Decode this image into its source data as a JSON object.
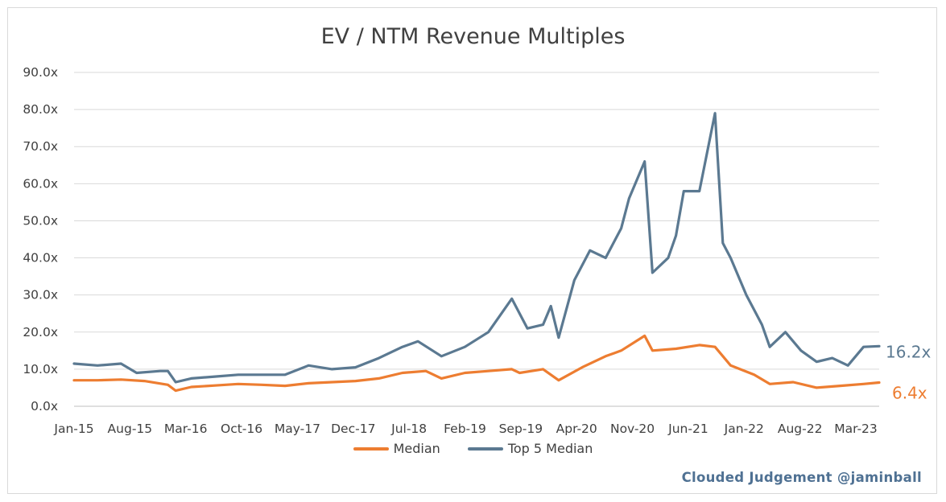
{
  "chart_data": {
    "type": "line",
    "title": "EV / NTM Revenue Multiples",
    "xlabel": "",
    "ylabel": "",
    "ylim": [
      0,
      90
    ],
    "y_ticks": [
      "0.0x",
      "10.0x",
      "20.0x",
      "30.0x",
      "40.0x",
      "50.0x",
      "60.0x",
      "70.0x",
      "80.0x",
      "90.0x"
    ],
    "x_ticks": [
      "Jan-15",
      "Aug-15",
      "Mar-16",
      "Oct-16",
      "May-17",
      "Dec-17",
      "Jul-18",
      "Feb-19",
      "Sep-19",
      "Apr-20",
      "Nov-20",
      "Jun-21",
      "Jan-22",
      "Aug-22",
      "Mar-23"
    ],
    "x_range": [
      "2015-01",
      "2023-08"
    ],
    "grid": true,
    "legend_position": "bottom",
    "series": [
      {
        "name": "Median",
        "color": "#ed7d31",
        "end_label": "6.4x",
        "points": [
          [
            "2015-01",
            7.0
          ],
          [
            "2015-04",
            7.0
          ],
          [
            "2015-07",
            7.2
          ],
          [
            "2015-10",
            6.8
          ],
          [
            "2016-01",
            5.8
          ],
          [
            "2016-02",
            4.2
          ],
          [
            "2016-04",
            5.2
          ],
          [
            "2016-07",
            5.6
          ],
          [
            "2016-10",
            6.0
          ],
          [
            "2017-01",
            5.8
          ],
          [
            "2017-04",
            5.5
          ],
          [
            "2017-07",
            6.2
          ],
          [
            "2017-10",
            6.5
          ],
          [
            "2018-01",
            6.8
          ],
          [
            "2018-04",
            7.5
          ],
          [
            "2018-07",
            9.0
          ],
          [
            "2018-10",
            9.5
          ],
          [
            "2018-12",
            7.5
          ],
          [
            "2019-03",
            9.0
          ],
          [
            "2019-06",
            9.5
          ],
          [
            "2019-09",
            10.0
          ],
          [
            "2019-10",
            9.0
          ],
          [
            "2020-01",
            10.0
          ],
          [
            "2020-03",
            7.0
          ],
          [
            "2020-06",
            10.5
          ],
          [
            "2020-09",
            13.5
          ],
          [
            "2020-11",
            15.0
          ],
          [
            "2021-02",
            19.0
          ],
          [
            "2021-03",
            15.0
          ],
          [
            "2021-06",
            15.5
          ],
          [
            "2021-09",
            16.5
          ],
          [
            "2021-11",
            16.0
          ],
          [
            "2022-01",
            11.0
          ],
          [
            "2022-04",
            8.5
          ],
          [
            "2022-06",
            6.0
          ],
          [
            "2022-09",
            6.5
          ],
          [
            "2022-12",
            5.0
          ],
          [
            "2023-03",
            5.5
          ],
          [
            "2023-06",
            6.0
          ],
          [
            "2023-08",
            6.4
          ]
        ]
      },
      {
        "name": "Top 5 Median",
        "color": "#5b7991",
        "end_label": "16.2x",
        "points": [
          [
            "2015-01",
            11.5
          ],
          [
            "2015-04",
            11.0
          ],
          [
            "2015-07",
            11.5
          ],
          [
            "2015-09",
            9.0
          ],
          [
            "2015-12",
            9.5
          ],
          [
            "2016-01",
            9.5
          ],
          [
            "2016-02",
            6.5
          ],
          [
            "2016-04",
            7.5
          ],
          [
            "2016-07",
            8.0
          ],
          [
            "2016-10",
            8.5
          ],
          [
            "2017-01",
            8.5
          ],
          [
            "2017-04",
            8.5
          ],
          [
            "2017-07",
            11.0
          ],
          [
            "2017-10",
            10.0
          ],
          [
            "2018-01",
            10.5
          ],
          [
            "2018-04",
            13.0
          ],
          [
            "2018-07",
            16.0
          ],
          [
            "2018-09",
            17.5
          ],
          [
            "2018-12",
            13.5
          ],
          [
            "2019-03",
            16.0
          ],
          [
            "2019-06",
            20.0
          ],
          [
            "2019-09",
            29.0
          ],
          [
            "2019-11",
            21.0
          ],
          [
            "2020-01",
            22.0
          ],
          [
            "2020-02",
            27.0
          ],
          [
            "2020-03",
            18.5
          ],
          [
            "2020-05",
            34.0
          ],
          [
            "2020-07",
            42.0
          ],
          [
            "2020-09",
            40.0
          ],
          [
            "2020-11",
            48.0
          ],
          [
            "2020-12",
            56.0
          ],
          [
            "2021-02",
            66.0
          ],
          [
            "2021-03",
            36.0
          ],
          [
            "2021-05",
            40.0
          ],
          [
            "2021-06",
            46.0
          ],
          [
            "2021-07",
            58.0
          ],
          [
            "2021-09",
            58.0
          ],
          [
            "2021-11",
            79.0
          ],
          [
            "2021-12",
            44.0
          ],
          [
            "2022-01",
            40.0
          ],
          [
            "2022-03",
            30.0
          ],
          [
            "2022-05",
            22.0
          ],
          [
            "2022-06",
            16.0
          ],
          [
            "2022-08",
            20.0
          ],
          [
            "2022-10",
            15.0
          ],
          [
            "2022-12",
            12.0
          ],
          [
            "2023-02",
            13.0
          ],
          [
            "2023-04",
            11.0
          ],
          [
            "2023-06",
            16.0
          ],
          [
            "2023-08",
            16.2
          ]
        ]
      }
    ]
  },
  "credit": "Clouded Judgement @jaminball"
}
